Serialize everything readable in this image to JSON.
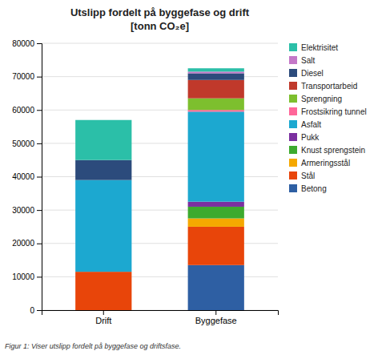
{
  "chart_data": {
    "type": "bar",
    "stacked": true,
    "title": "Utslipp fordelt på byggefase og drift",
    "subtitle": "[tonn CO₂e]",
    "caption": "Figur 1:  Viser utslipp fordelt på byggefase og driftsfase.",
    "categories": [
      "Drift",
      "Byggefase"
    ],
    "series": [
      {
        "name": "Betong",
        "color": "#2E5FA3",
        "values": [
          0,
          13500
        ]
      },
      {
        "name": "Stål",
        "color": "#E8450A",
        "values": [
          11500,
          11500
        ]
      },
      {
        "name": "Armeringsstål",
        "color": "#F5A800",
        "values": [
          0,
          2500
        ]
      },
      {
        "name": "Knust sprengstein",
        "color": "#3DAA2E",
        "values": [
          0,
          3500
        ]
      },
      {
        "name": "Pukk",
        "color": "#7B2FA0",
        "values": [
          0,
          1500
        ]
      },
      {
        "name": "Asfalt",
        "color": "#1CA8D0",
        "values": [
          27500,
          27000
        ]
      },
      {
        "name": "Frostsikring tunnel",
        "color": "#FF6699",
        "values": [
          0,
          500
        ]
      },
      {
        "name": "Sprengning",
        "color": "#7DBF2E",
        "values": [
          0,
          3500
        ]
      },
      {
        "name": "Transportarbeid",
        "color": "#C0392B",
        "values": [
          0,
          5500
        ]
      },
      {
        "name": "Diesel",
        "color": "#2C4B7C",
        "values": [
          6000,
          2000
        ]
      },
      {
        "name": "Salt",
        "color": "#C478C8",
        "values": [
          0,
          500
        ]
      },
      {
        "name": "Elektrisitet",
        "color": "#2BBFA8",
        "values": [
          12000,
          1000
        ]
      }
    ],
    "ylim": [
      0,
      80000
    ],
    "yticks": [
      0,
      10000,
      20000,
      30000,
      40000,
      50000,
      60000,
      70000,
      80000
    ],
    "grid": true,
    "legend": "upper right"
  }
}
